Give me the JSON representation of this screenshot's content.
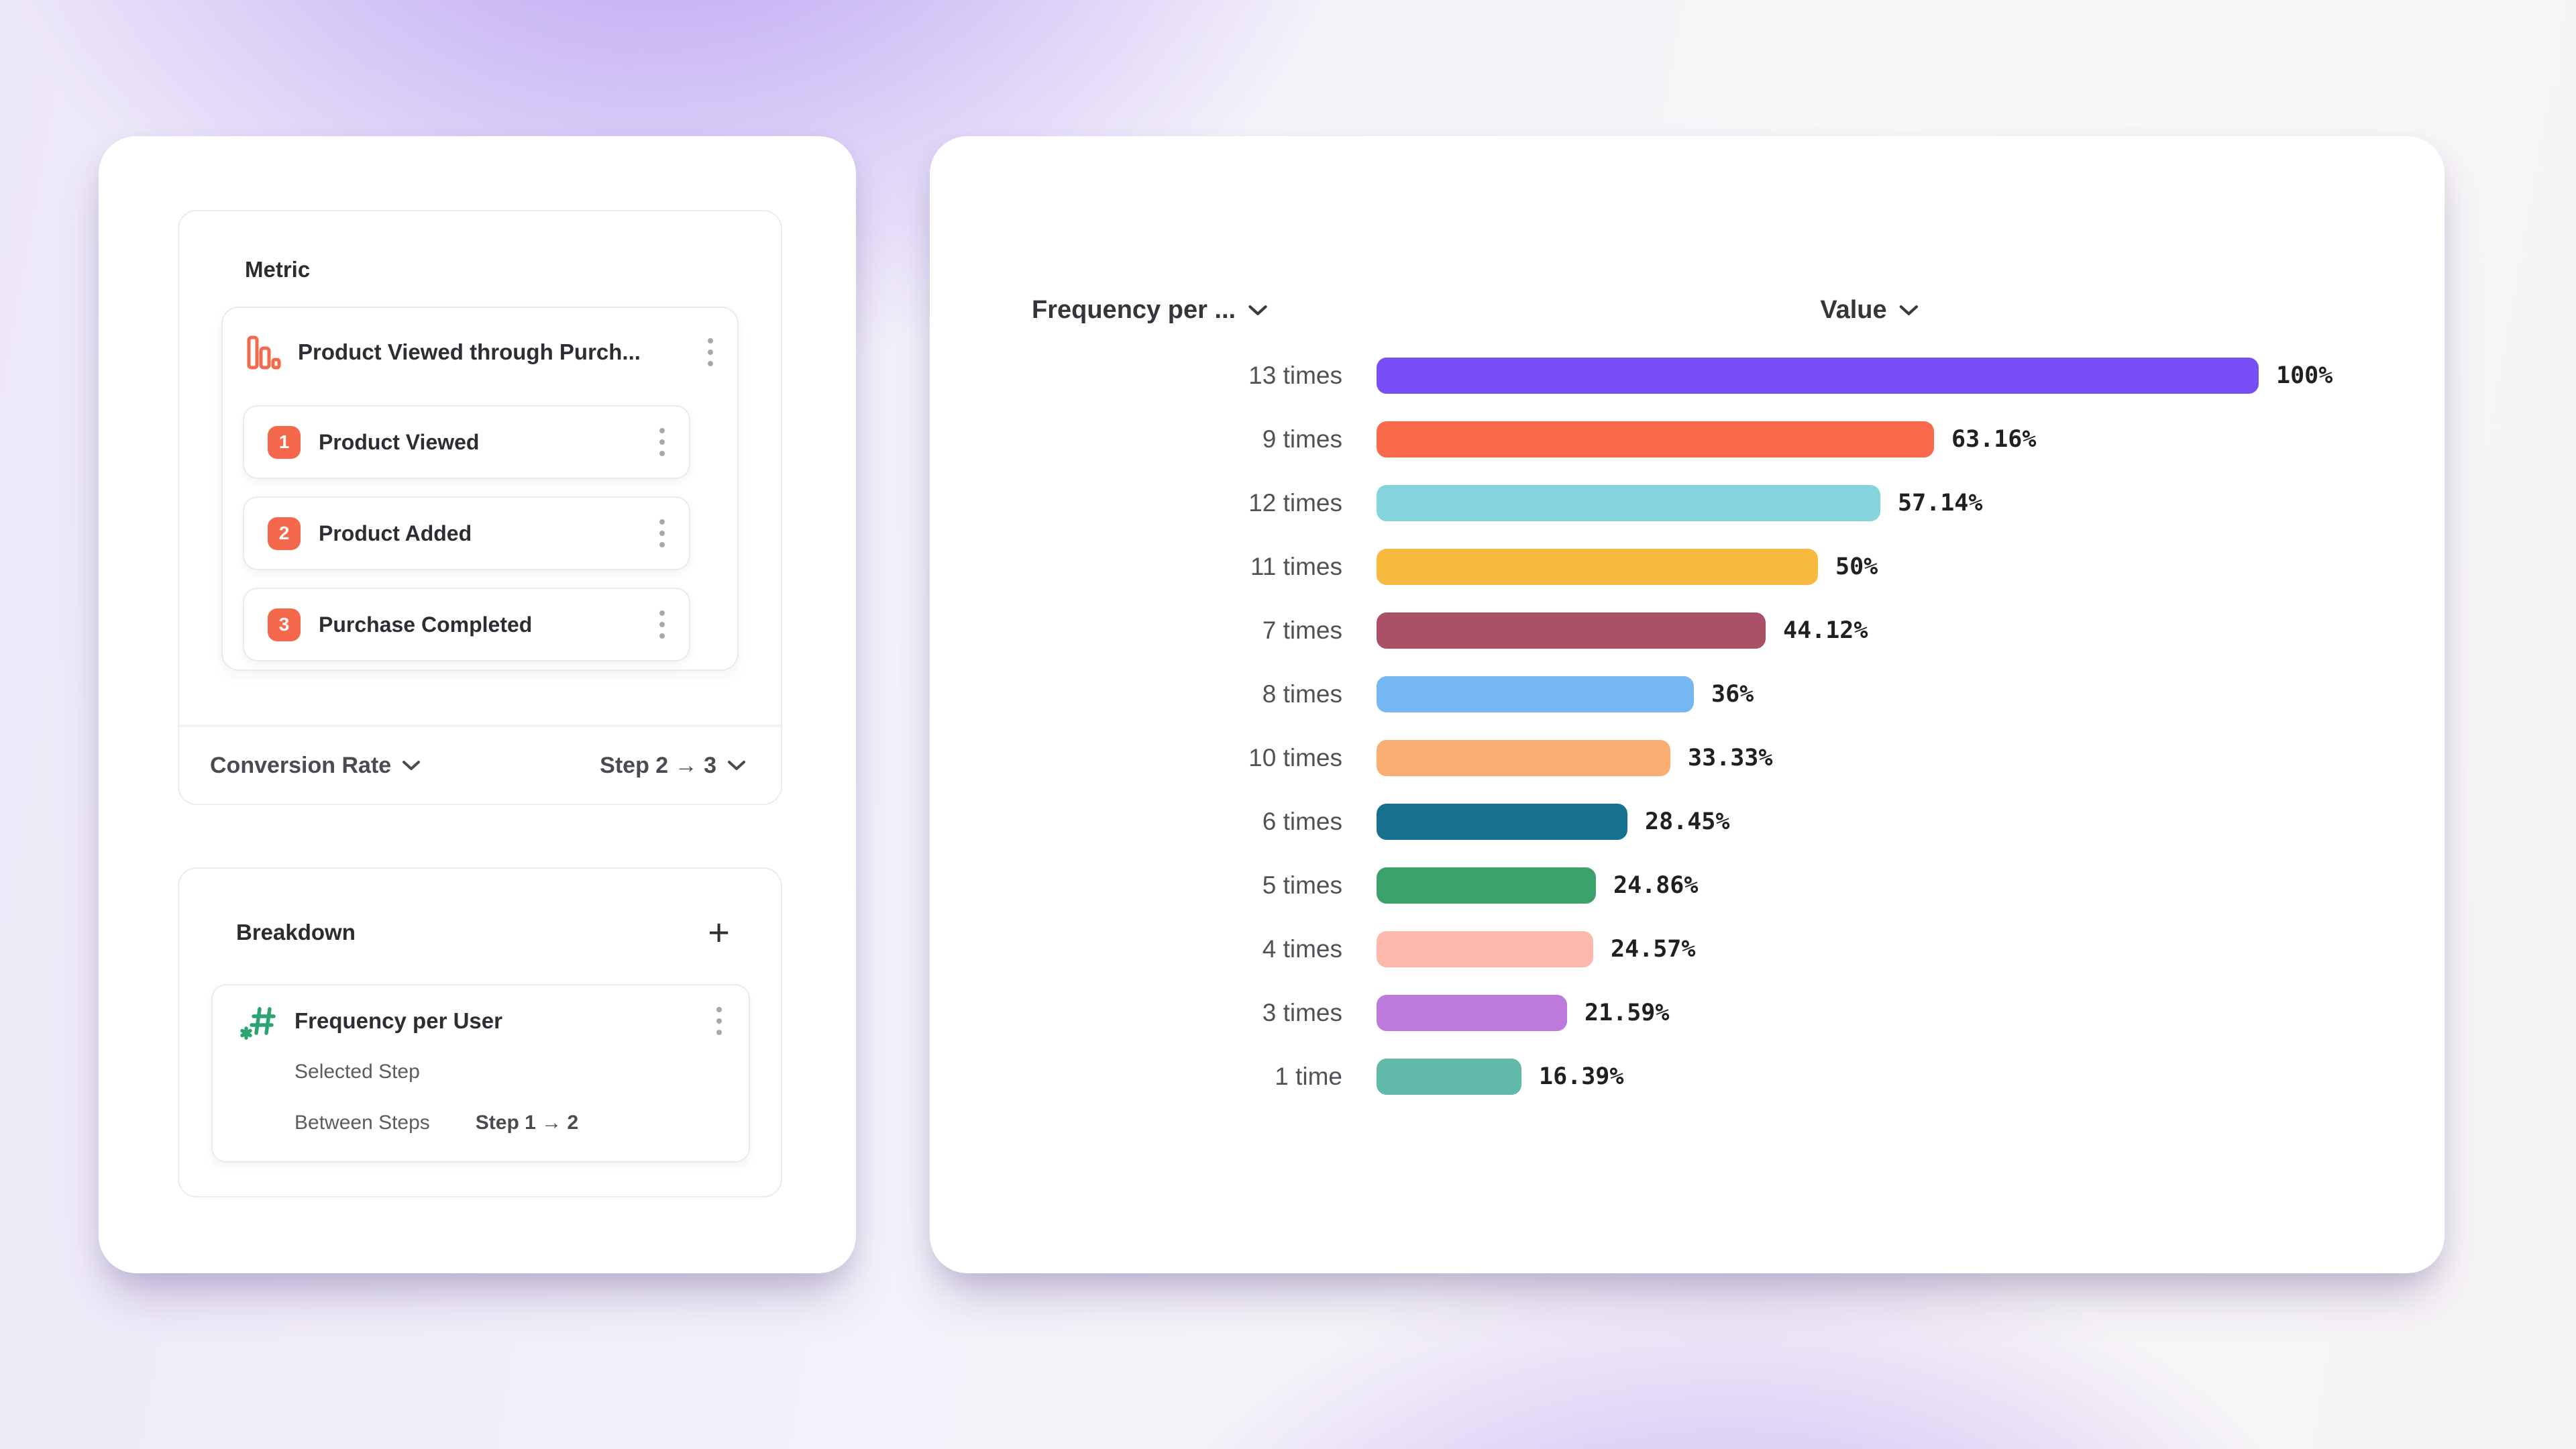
{
  "colors": {
    "accent_orange": "#F4694C",
    "accent_green": "#2BA470",
    "background_glow": "#8B62EE",
    "card_background": "#FFFFFF"
  },
  "left_panel": {
    "metric_section": {
      "label": "Metric",
      "metric": {
        "icon": "bar-chart-icon",
        "name": "Product Viewed through Purch...",
        "steps": [
          {
            "index": "1",
            "label": "Product Viewed"
          },
          {
            "index": "2",
            "label": "Product Added"
          },
          {
            "index": "3",
            "label": "Purchase Completed"
          }
        ]
      },
      "footer": {
        "measure": "Conversion Rate",
        "step_range": "Step 2 → 3"
      }
    },
    "breakdown_section": {
      "label": "Breakdown",
      "add_button": "+",
      "breakdown": {
        "icon": "hash-frequency-icon",
        "name": "Frequency per User",
        "selected_step_label": "Selected Step",
        "between_steps_label": "Between Steps",
        "between_steps_value": "Step 1 → 2"
      }
    }
  },
  "chart_panel": {
    "category_column_header": "Frequency per ...",
    "value_column_header": "Value"
  },
  "chart_data": {
    "type": "bar",
    "orientation": "horizontal",
    "title": "",
    "xlabel": "Value",
    "ylabel": "Frequency per ...",
    "xlim": [
      0,
      100
    ],
    "grid": false,
    "categories": [
      "13 times",
      "9 times",
      "12 times",
      "11 times",
      "7 times",
      "8 times",
      "10 times",
      "6 times",
      "5 times",
      "4 times",
      "3 times",
      "1 time"
    ],
    "values": [
      100,
      63.16,
      57.14,
      50,
      44.12,
      36,
      33.33,
      28.45,
      24.86,
      24.57,
      21.59,
      16.39
    ],
    "value_labels": [
      "100%",
      "63.16%",
      "57.14%",
      "50%",
      "44.12%",
      "36%",
      "33.33%",
      "28.45%",
      "24.86%",
      "24.57%",
      "21.59%",
      "16.39%"
    ],
    "bar_colors": [
      "#7A4EF6",
      "#F9694C",
      "#85D4DC",
      "#F6B83D",
      "#AA5168",
      "#74B7F2",
      "#FAAE73",
      "#17708F",
      "#3AA26A",
      "#FBB8AB",
      "#BC7ADC",
      "#60B9A9"
    ]
  }
}
